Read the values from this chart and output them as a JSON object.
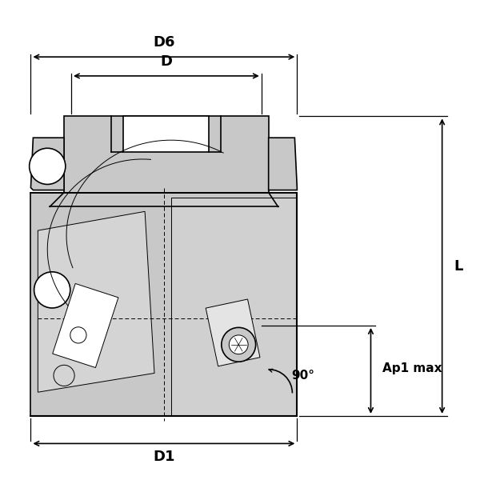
{
  "bg_color": "#ffffff",
  "line_color": "#000000",
  "gray_fill": "#c8c8c8",
  "annotations": {
    "D6": {
      "label": "D6"
    },
    "D": {
      "label": "D"
    },
    "D1": {
      "label": "D1"
    },
    "L": {
      "label": "L"
    },
    "Ap1max": {
      "label": "Ap1 max"
    },
    "angle": {
      "label": "90°"
    }
  }
}
